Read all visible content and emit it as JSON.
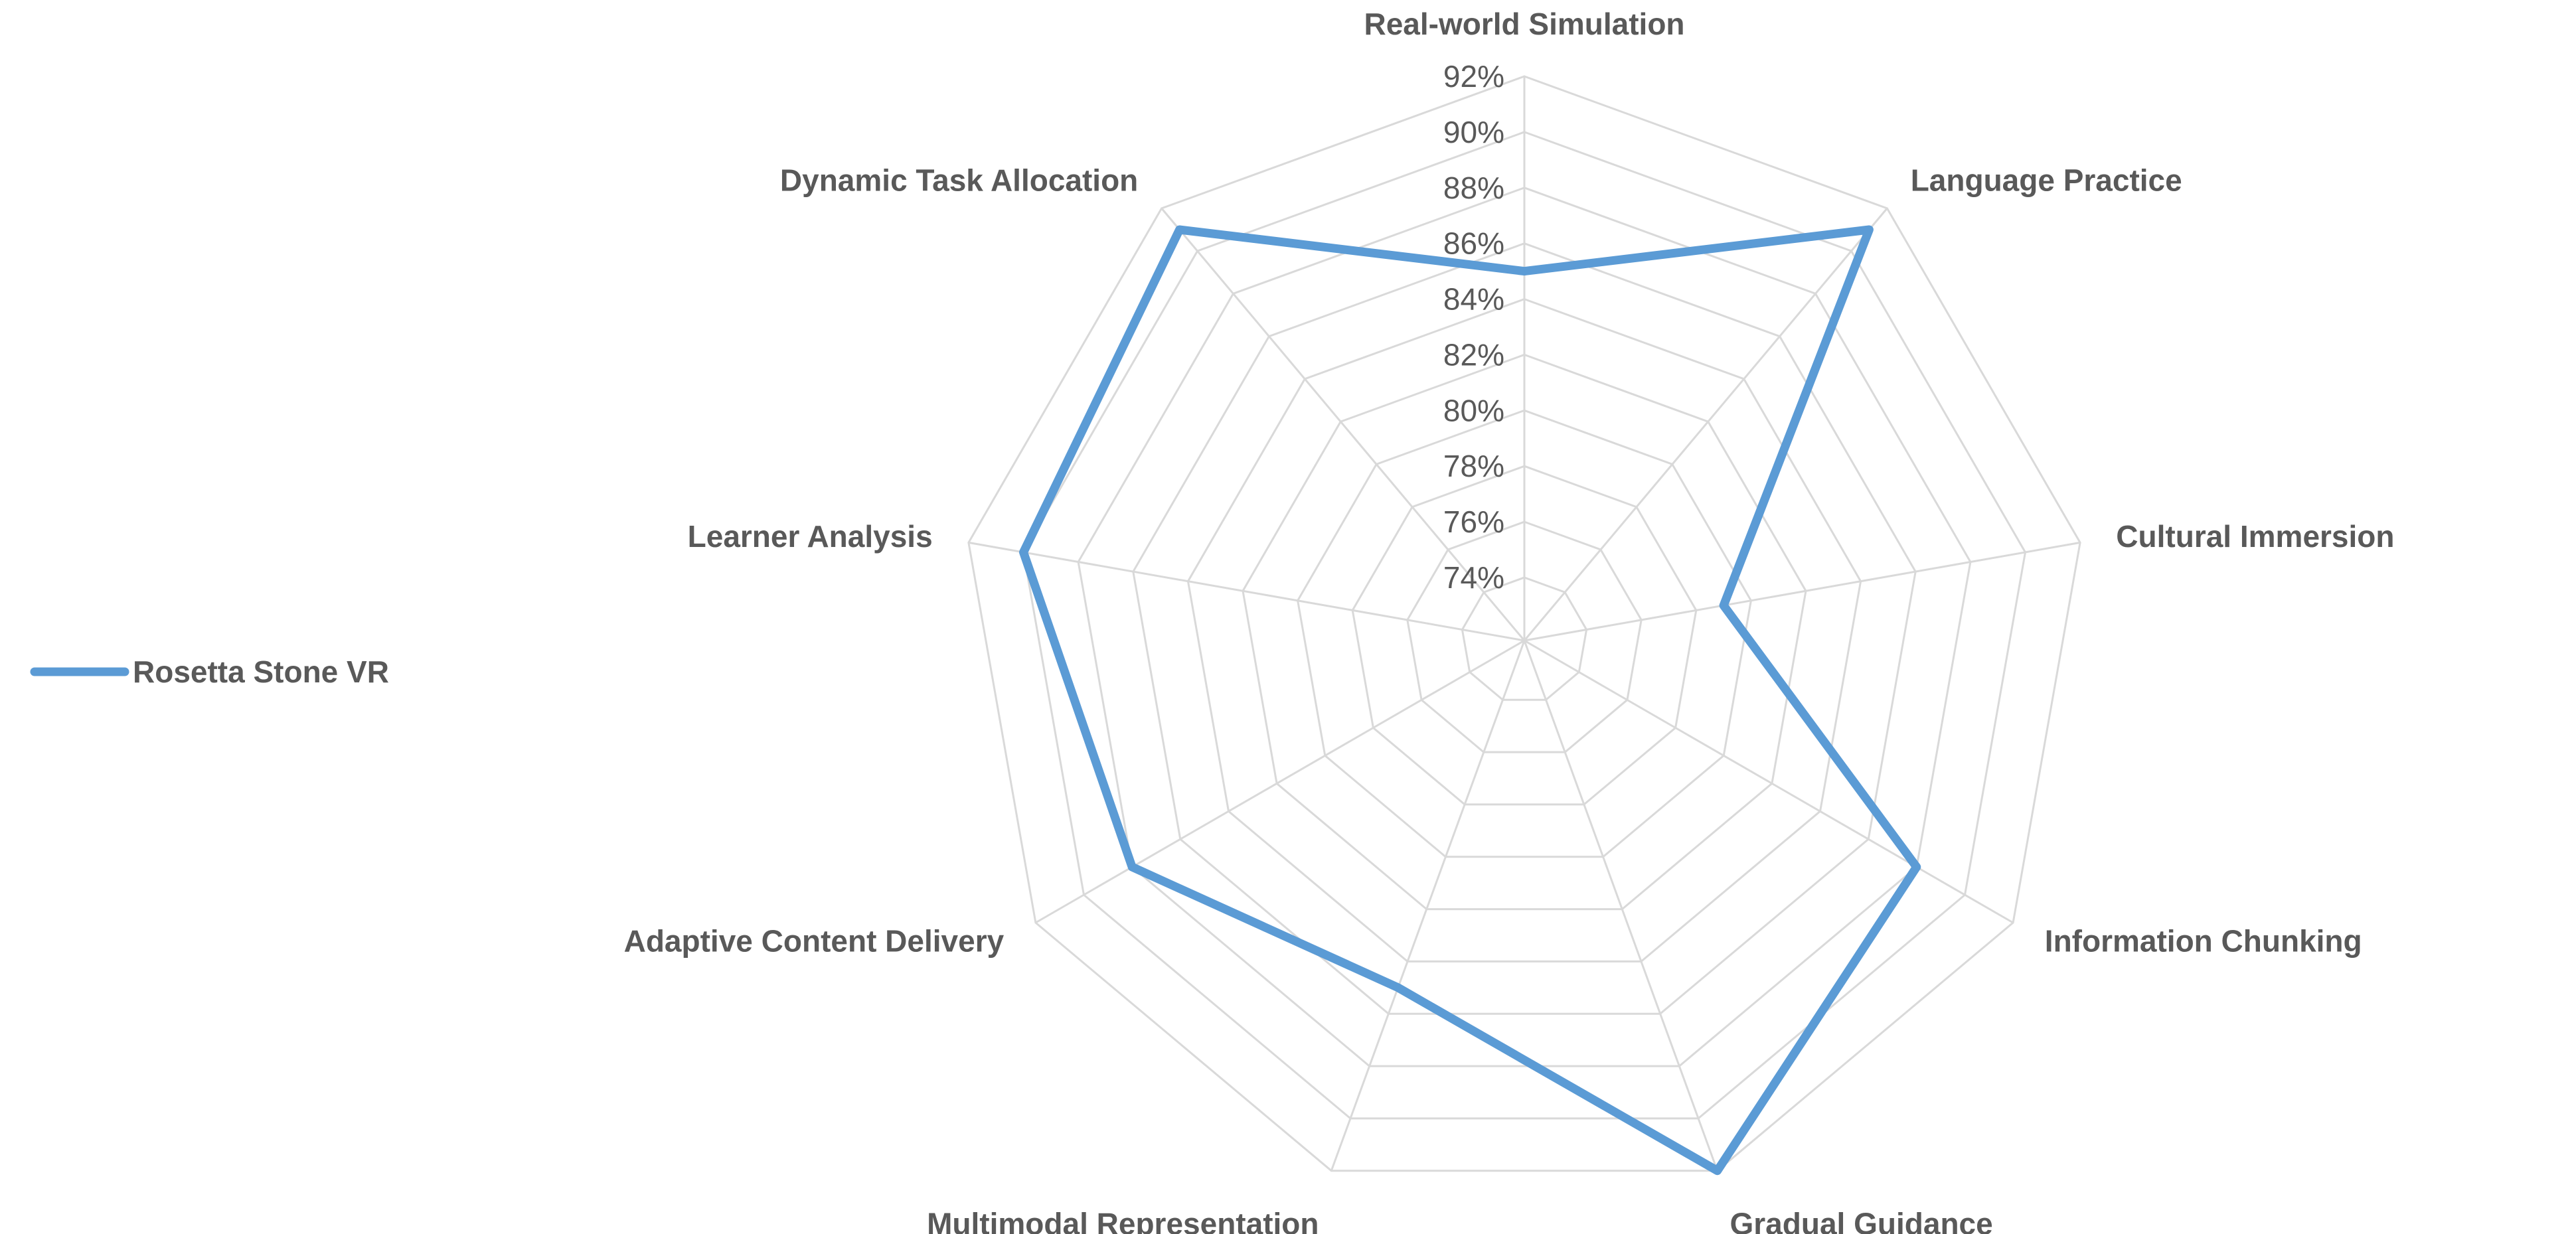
{
  "chart_data": {
    "type": "radar",
    "title": "",
    "categories": [
      "Real-world Simulation",
      "Language Practice",
      "Cultural Immersion",
      "Information Chunking",
      "Gradual Guidance",
      "Multimodal Representation",
      "Adaptive Content Delivery",
      "Learner Analysis",
      "Dynamic Task Allocation"
    ],
    "series": [
      {
        "name": "Rosetta Stone VR",
        "color": "#5b9bd5",
        "values": [
          85,
          91,
          79,
          88,
          92,
          85,
          88,
          90,
          91
        ]
      }
    ],
    "rlim": [
      74,
      92
    ],
    "ticks": [
      74,
      76,
      78,
      80,
      82,
      84,
      86,
      88,
      90,
      92
    ],
    "tick_format": "percent",
    "grid": true,
    "legend_position": "left"
  }
}
